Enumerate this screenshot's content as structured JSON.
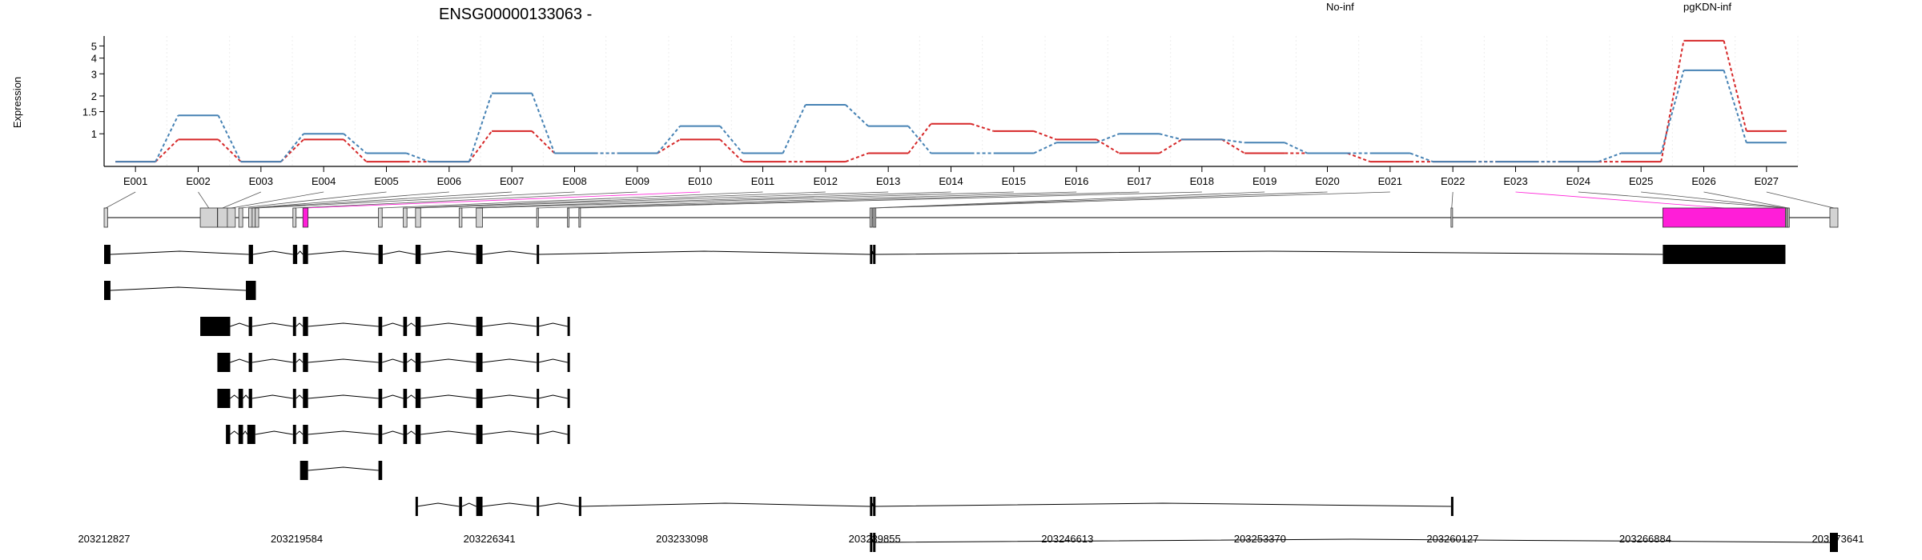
{
  "colors": {
    "no_inf": "#d62728",
    "pgkdn_inf": "#4682b4",
    "highlight": "#ff1ed8",
    "exon_box": "#d3d3d3",
    "axis": "#000000",
    "grid": "#eeeeee"
  },
  "chart_data": {
    "type": "line",
    "title": "ENSG00000133063 -",
    "ylabel": "Expression",
    "xlabel": "",
    "y_scale": "log",
    "y_ticks": [
      "1",
      "1.5",
      "2",
      "3",
      "4",
      "5"
    ],
    "ylim": [
      0.55,
      6.0
    ],
    "grid": "vertical",
    "legend_placement": "top-right",
    "categories": [
      "E001",
      "E002",
      "E003",
      "E004",
      "E005",
      "E006",
      "E007",
      "E008",
      "E009",
      "E010",
      "E011",
      "E012",
      "E013",
      "E014",
      "E015",
      "E016",
      "E017",
      "E018",
      "E019",
      "E020",
      "E021",
      "E022",
      "E023",
      "E024",
      "E025",
      "E026",
      "E027"
    ],
    "series": [
      {
        "name": "No-inf",
        "color": "#d62728",
        "values": [
          0.6,
          0.9,
          0.6,
          0.9,
          0.6,
          0.6,
          1.05,
          0.7,
          0.7,
          0.9,
          0.6,
          0.6,
          0.7,
          1.2,
          1.05,
          0.9,
          0.7,
          0.9,
          0.7,
          0.7,
          0.6,
          0.6,
          0.6,
          0.6,
          0.6,
          5.5,
          1.05
        ]
      },
      {
        "name": "pgKDN-inf",
        "color": "#4682b4",
        "values": [
          0.6,
          1.4,
          0.6,
          1.0,
          0.7,
          0.6,
          2.1,
          0.7,
          0.7,
          1.15,
          0.7,
          1.7,
          1.15,
          0.7,
          0.7,
          0.85,
          1.0,
          0.9,
          0.85,
          0.7,
          0.7,
          0.6,
          0.6,
          0.6,
          0.7,
          3.2,
          0.85
        ]
      }
    ],
    "coordinate_labels": [
      "203212827",
      "203219584",
      "203226341",
      "203233098",
      "203239855",
      "203246613",
      "203253370",
      "203260127",
      "203266884",
      "203273641"
    ],
    "genomic_start": 203212827,
    "genomic_end": 203273641,
    "gene_model": {
      "exons": [
        {
          "id": "E001",
          "start": 203212827,
          "end": 203212950,
          "highlight": false
        },
        {
          "id": "E002",
          "start": 203216200,
          "end": 203216800,
          "highlight": false
        },
        {
          "id": "E003",
          "start": 203216810,
          "end": 203217150,
          "highlight": false
        },
        {
          "id": "E004",
          "start": 203217150,
          "end": 203217430,
          "highlight": false
        },
        {
          "id": "E005",
          "start": 203217550,
          "end": 203217690,
          "highlight": false
        },
        {
          "id": "E006",
          "start": 203217900,
          "end": 203218020,
          "highlight": false
        },
        {
          "id": "E007",
          "start": 203218020,
          "end": 203218130,
          "highlight": false
        },
        {
          "id": "E008",
          "start": 203218130,
          "end": 203218250,
          "highlight": false
        },
        {
          "id": "E009",
          "start": 203219450,
          "end": 203219560,
          "highlight": false
        },
        {
          "id": "E010",
          "start": 203219800,
          "end": 203219980,
          "highlight": true
        },
        {
          "id": "E011",
          "start": 203222450,
          "end": 203222580,
          "highlight": false
        },
        {
          "id": "E012",
          "start": 203223320,
          "end": 203223450,
          "highlight": false
        },
        {
          "id": "E013",
          "start": 203223750,
          "end": 203223930,
          "highlight": false
        },
        {
          "id": "E014",
          "start": 203225280,
          "end": 203225380,
          "highlight": false
        },
        {
          "id": "E015",
          "start": 203225880,
          "end": 203226100,
          "highlight": false
        },
        {
          "id": "E016",
          "start": 203228000,
          "end": 203228060,
          "highlight": false
        },
        {
          "id": "E017",
          "start": 203229080,
          "end": 203229130,
          "highlight": false
        },
        {
          "id": "E018",
          "start": 203229480,
          "end": 203229530,
          "highlight": false
        },
        {
          "id": "E019",
          "start": 203239690,
          "end": 203239760,
          "highlight": false
        },
        {
          "id": "E020",
          "start": 203239790,
          "end": 203239830,
          "highlight": false
        },
        {
          "id": "E021",
          "start": 203239840,
          "end": 203239870,
          "highlight": false
        },
        {
          "id": "E022",
          "start": 203260070,
          "end": 203260120,
          "highlight": false
        },
        {
          "id": "E023",
          "start": 203267500,
          "end": 203271800,
          "highlight": true
        },
        {
          "id": "E024",
          "start": 203271800,
          "end": 203271840,
          "highlight": false
        },
        {
          "id": "E025",
          "start": 203271840,
          "end": 203271880,
          "highlight": false
        },
        {
          "id": "E026",
          "start": 203271880,
          "end": 203271920,
          "highlight": false
        },
        {
          "id": "E027",
          "start": 203273360,
          "end": 203273641,
          "highlight": false
        }
      ],
      "transcripts": [
        {
          "exons": [
            [
              203212827,
              203213050
            ],
            [
              203217900,
              203218050
            ],
            [
              203219450,
              203219600
            ],
            [
              203219800,
              203219980
            ],
            [
              203222450,
              203222600
            ],
            [
              203223750,
              203223930
            ],
            [
              203225880,
              203226100
            ],
            [
              203228000,
              203228060
            ],
            [
              203239690,
              203239760
            ],
            [
              203239800,
              203239870
            ],
            [
              203267500,
              203271800
            ]
          ]
        },
        {
          "exons": [
            [
              203212827,
              203213050
            ],
            [
              203217800,
              203218150
            ]
          ]
        },
        {
          "exons": [
            [
              203216200,
              203217250
            ],
            [
              203217900,
              203218020
            ],
            [
              203219450,
              203219560
            ],
            [
              203219800,
              203219980
            ],
            [
              203222450,
              203222580
            ],
            [
              203223320,
              203223450
            ],
            [
              203223750,
              203223930
            ],
            [
              203225880,
              203226100
            ],
            [
              203228000,
              203228060
            ],
            [
              203229080,
              203229130
            ]
          ]
        },
        {
          "exons": [
            [
              203216800,
              203217250
            ],
            [
              203217900,
              203218020
            ],
            [
              203219450,
              203219560
            ],
            [
              203219800,
              203219980
            ],
            [
              203222450,
              203222580
            ],
            [
              203223320,
              203223450
            ],
            [
              203223750,
              203223930
            ],
            [
              203225880,
              203226100
            ],
            [
              203228000,
              203228060
            ],
            [
              203229080,
              203229130
            ]
          ]
        },
        {
          "exons": [
            [
              203216800,
              203217250
            ],
            [
              203217540,
              203217700
            ],
            [
              203217900,
              203218020
            ],
            [
              203219450,
              203219560
            ],
            [
              203219800,
              203219980
            ],
            [
              203222450,
              203222580
            ],
            [
              203223320,
              203223450
            ],
            [
              203223750,
              203223930
            ],
            [
              203225880,
              203226100
            ],
            [
              203228000,
              203228060
            ],
            [
              203229080,
              203229130
            ]
          ]
        },
        {
          "exons": [
            [
              203217100,
              203217250
            ],
            [
              203217540,
              203217700
            ],
            [
              203217850,
              203218130
            ],
            [
              203219450,
              203219560
            ],
            [
              203219800,
              203219980
            ],
            [
              203222450,
              203222580
            ],
            [
              203223320,
              203223450
            ],
            [
              203223750,
              203223930
            ],
            [
              203225880,
              203226100
            ],
            [
              203228000,
              203228060
            ],
            [
              203229080,
              203229130
            ]
          ]
        },
        {
          "exons": [
            [
              203219700,
              203219980
            ],
            [
              203222450,
              203222580
            ]
          ]
        },
        {
          "exons": [
            [
              203223750,
              203223800
            ],
            [
              203225280,
              203225380
            ],
            [
              203225880,
              203226100
            ],
            [
              203228000,
              203228060
            ],
            [
              203229480,
              203229530
            ],
            [
              203239690,
              203239760
            ],
            [
              203239800,
              203239850
            ],
            [
              203260070,
              203260120
            ]
          ]
        },
        {
          "exons": [
            [
              203239690,
              203239760
            ],
            [
              203239800,
              203239850
            ],
            [
              203273360,
              203273641
            ]
          ]
        }
      ]
    }
  }
}
